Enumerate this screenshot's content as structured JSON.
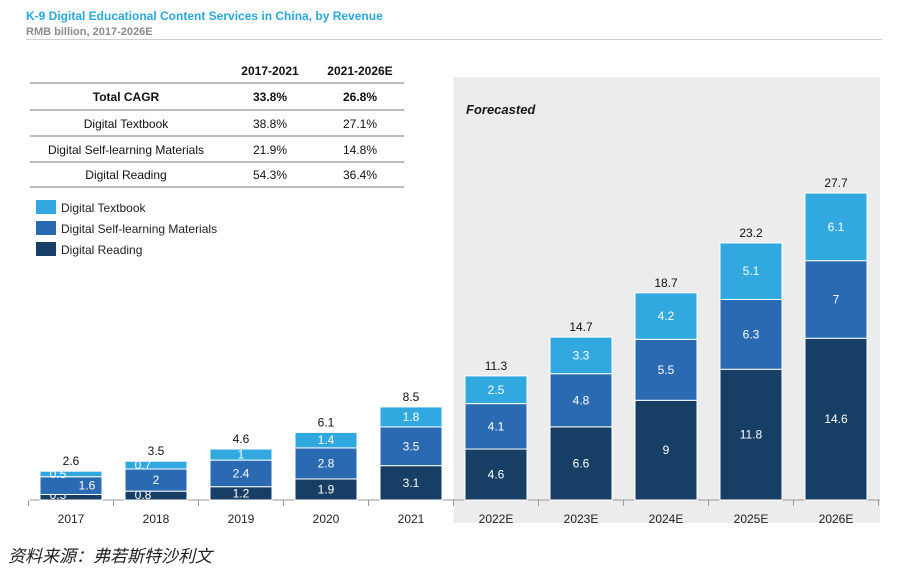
{
  "header": {
    "title": "K-9 Digital Educational Content Services in China, by Revenue",
    "subtitle": "RMB billion, 2017-2026E"
  },
  "footer": {
    "source": "资料来源：弗若斯特沙利文"
  },
  "chart_data": {
    "type": "bar",
    "stacked": true,
    "title": "K-9 Digital Educational Content Services in China, by Revenue",
    "subtitle": "RMB billion, 2017-2026E",
    "categories": [
      "2017",
      "2018",
      "2019",
      "2020",
      "2021",
      "2022E",
      "2023E",
      "2024E",
      "2025E",
      "2026E"
    ],
    "series": [
      {
        "name": "Digital Reading",
        "values": [
          0.5,
          0.8,
          1.2,
          1.9,
          3.1,
          4.6,
          6.6,
          9.0,
          11.8,
          14.6
        ],
        "color": "#173e64"
      },
      {
        "name": "Digital Self-learning Materials",
        "values": [
          1.6,
          2.0,
          2.4,
          2.8,
          3.5,
          4.1,
          4.8,
          5.5,
          6.3,
          7.0
        ],
        "color": "#2a6ab3"
      },
      {
        "name": "Digital Textbook",
        "values": [
          0.5,
          0.7,
          1.0,
          1.4,
          1.8,
          2.5,
          3.3,
          4.2,
          5.1,
          6.1
        ],
        "color": "#32a8e0"
      }
    ],
    "totals": [
      2.6,
      3.5,
      4.6,
      6.1,
      8.5,
      11.3,
      14.7,
      18.7,
      23.2,
      27.7
    ],
    "legend_order": [
      "Digital Textbook",
      "Digital Self-learning Materials",
      "Digital Reading"
    ],
    "legend_position": "top-left",
    "forecast_label": "Forecasted",
    "forecast_start": "2022E",
    "ylim": [
      0,
      28
    ],
    "grid": false,
    "cagr_table": {
      "columns": [
        "2017-2021",
        "2021-2026E"
      ],
      "rows": [
        {
          "label": "Total CAGR",
          "values": [
            "33.8%",
            "26.8%"
          ],
          "bold": true
        },
        {
          "label": "Digital Textbook",
          "values": [
            "38.8%",
            "27.1%"
          ]
        },
        {
          "label": "Digital Self-learning Materials",
          "values": [
            "21.9%",
            "14.8%"
          ]
        },
        {
          "label": "Digital Reading",
          "values": [
            "54.3%",
            "36.4%"
          ]
        }
      ]
    }
  }
}
